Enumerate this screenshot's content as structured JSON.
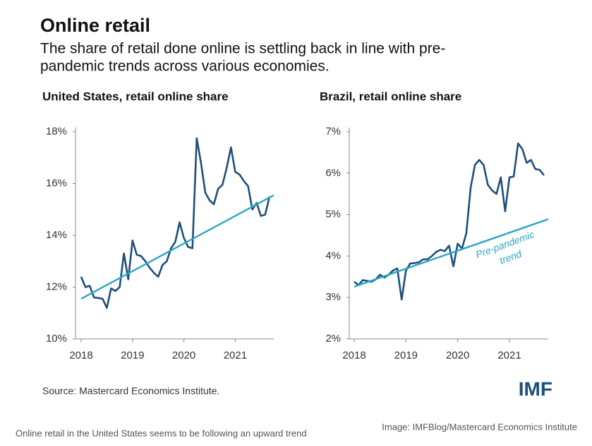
{
  "title": "Online retail",
  "subtitle": [
    "The share of retail done online is settling back in line with pre-",
    "pandemic trends across various economies."
  ],
  "source": "Source: Mastercard Economics Institute.",
  "logo": "IMF",
  "caption": "Online retail in the United States seems to be following an upward trend",
  "credit": "Image: IMFBlog/Mastercard Economics Institute",
  "chart_data": [
    {
      "type": "line",
      "title": "United States, retail online share",
      "xlim": [
        2018,
        2021.75
      ],
      "xticks": [
        2018,
        2019,
        2020,
        2021
      ],
      "ylim": [
        10,
        18
      ],
      "yticks": [
        {
          "value": 10,
          "label": "10%"
        },
        {
          "value": 12,
          "label": "12%"
        },
        {
          "value": 14,
          "label": "14%"
        },
        {
          "value": 16,
          "label": "16%"
        },
        {
          "value": 18,
          "label": "18%"
        }
      ],
      "series": [
        {
          "color": "#1d4f7c",
          "x": [
            2018,
            2018.083,
            2018.167,
            2018.25,
            2018.333,
            2018.417,
            2018.5,
            2018.583,
            2018.667,
            2018.75,
            2018.833,
            2018.917,
            2019,
            2019.083,
            2019.167,
            2019.25,
            2019.333,
            2019.417,
            2019.5,
            2019.583,
            2019.667,
            2019.75,
            2019.833,
            2019.917,
            2020,
            2020.083,
            2020.167,
            2020.25,
            2020.333,
            2020.417,
            2020.5,
            2020.583,
            2020.667,
            2020.75,
            2020.833,
            2020.917,
            2021,
            2021.083,
            2021.167,
            2021.25,
            2021.333,
            2021.417,
            2021.5,
            2021.583,
            2021.667
          ],
          "values": [
            12.4,
            12.0,
            12.05,
            11.6,
            11.58,
            11.55,
            11.2,
            11.95,
            11.85,
            12.0,
            13.3,
            12.3,
            13.8,
            13.25,
            13.2,
            13.0,
            12.75,
            12.55,
            12.4,
            12.85,
            13.0,
            13.5,
            13.75,
            14.5,
            13.9,
            13.55,
            13.5,
            17.75,
            16.8,
            15.65,
            15.35,
            15.2,
            15.8,
            15.95,
            16.6,
            17.4,
            16.45,
            16.35,
            16.1,
            15.9,
            15.0,
            15.25,
            14.75,
            14.8,
            15.5
          ]
        },
        {
          "color": "#2ba6c6",
          "x": [
            2018,
            2021.75
          ],
          "values": [
            11.55,
            15.55
          ]
        }
      ]
    },
    {
      "type": "line",
      "title": "Brazil, retail online share",
      "xlim": [
        2018,
        2021.75
      ],
      "xticks": [
        2018,
        2019,
        2020,
        2021
      ],
      "ylim": [
        2,
        7
      ],
      "yticks": [
        {
          "value": 2,
          "label": "2%"
        },
        {
          "value": 3,
          "label": "3%"
        },
        {
          "value": 4,
          "label": "4%"
        },
        {
          "value": 5,
          "label": "5%"
        },
        {
          "value": 6,
          "label": "6%"
        },
        {
          "value": 7,
          "label": "7%"
        }
      ],
      "annotation": [
        "Pre-pandemic",
        "trend"
      ],
      "series": [
        {
          "color": "#1d4f7c",
          "x": [
            2018,
            2018.083,
            2018.167,
            2018.25,
            2018.333,
            2018.417,
            2018.5,
            2018.583,
            2018.667,
            2018.75,
            2018.833,
            2018.917,
            2019,
            2019.083,
            2019.167,
            2019.25,
            2019.333,
            2019.417,
            2019.5,
            2019.583,
            2019.667,
            2019.75,
            2019.833,
            2019.917,
            2020,
            2020.083,
            2020.167,
            2020.25,
            2020.333,
            2020.417,
            2020.5,
            2020.583,
            2020.667,
            2020.75,
            2020.833,
            2020.917,
            2021,
            2021.083,
            2021.167,
            2021.25,
            2021.333,
            2021.417,
            2021.5,
            2021.583,
            2021.667
          ],
          "values": [
            3.38,
            3.3,
            3.42,
            3.4,
            3.38,
            3.44,
            3.55,
            3.48,
            3.55,
            3.65,
            3.7,
            2.95,
            3.65,
            3.82,
            3.83,
            3.85,
            3.92,
            3.92,
            4.0,
            4.1,
            4.15,
            4.12,
            4.25,
            3.75,
            4.3,
            4.18,
            4.55,
            5.65,
            6.2,
            6.32,
            6.2,
            5.72,
            5.58,
            5.5,
            5.9,
            5.08,
            5.9,
            5.92,
            6.72,
            6.58,
            6.25,
            6.32,
            6.1,
            6.08,
            5.95
          ]
        },
        {
          "color": "#2ba6c6",
          "x": [
            2018,
            2021.75
          ],
          "values": [
            3.26,
            4.89
          ]
        }
      ]
    }
  ]
}
